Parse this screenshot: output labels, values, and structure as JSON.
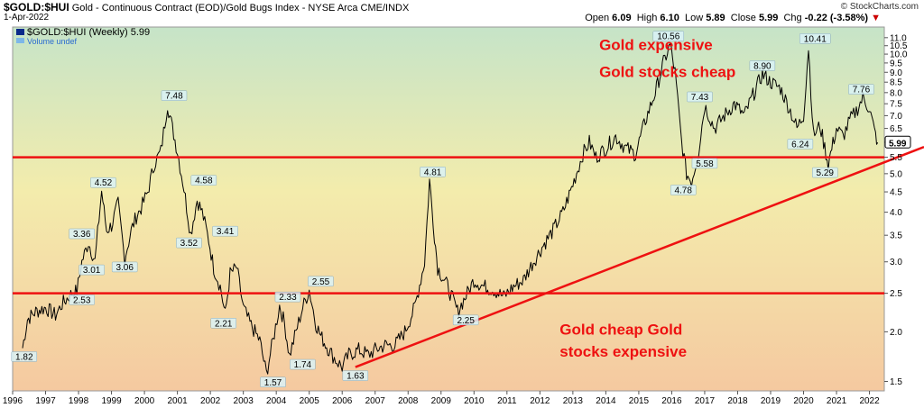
{
  "header": {
    "symbol": "$GOLD:$HUI",
    "description": "Gold - Continuous Contract (EOD)/Gold Bugs Index - NYSE Arca",
    "exchange": "CME/INDX",
    "date": "1-Apr-2022",
    "credit": "© StockCharts.com",
    "open_label": "Open",
    "open": "6.09",
    "high_label": "High",
    "high": "6.10",
    "low_label": "Low",
    "low": "5.89",
    "close_label": "Close",
    "close": "5.99",
    "chg_label": "Chg",
    "chg": "-0.22 (-3.58%)"
  },
  "legend": {
    "series_label": "$GOLD:$HUI (Weekly) 5.99",
    "volume_label": "Volume undef"
  },
  "colors": {
    "price": "#000000",
    "trendline": "#ee1111",
    "annotation": "#ee1111",
    "bg_top": "#c6e4c8",
    "bg_mid": "#f3ecac",
    "bg_bottom": "#f5c9a0",
    "label_fill": "#d9f2f7"
  },
  "chart_data": {
    "type": "line",
    "title": "$GOLD:$HUI Gold - Continuous Contract (EOD)/Gold Bugs Index - NYSE Arca",
    "yscale": "log",
    "ylim": [
      1.42,
      11.7
    ],
    "xlim": [
      1996.0,
      2022.45
    ],
    "y_ticks": [
      "11.0",
      "10.5",
      "10.0",
      "9.5",
      "9.0",
      "8.5",
      "8.0",
      "7.5",
      "7.0",
      "6.5",
      "6.0",
      "5.5",
      "5.0",
      "4.5",
      "4.0",
      "3.5",
      "3.0",
      "2.5",
      "2.0",
      "1.5"
    ],
    "x_ticks": [
      "1996",
      "1997",
      "1998",
      "1999",
      "2000",
      "2001",
      "2002",
      "2003",
      "2004",
      "2005",
      "2006",
      "2007",
      "2008",
      "2009",
      "2010",
      "2011",
      "2012",
      "2013",
      "2014",
      "2015",
      "2016",
      "2017",
      "2018",
      "2019",
      "2020",
      "2021",
      "2022"
    ],
    "series": [
      {
        "name": "$GOLD:$HUI (Weekly)",
        "x": [
          1996.3,
          1996.45,
          1996.7,
          1997.0,
          1997.3,
          1997.5,
          1997.8,
          1997.95,
          1998.1,
          1998.3,
          1998.5,
          1998.7,
          1998.85,
          1999.0,
          1999.2,
          1999.4,
          1999.6,
          1999.75,
          1999.9,
          2000.1,
          2000.3,
          2000.5,
          2000.7,
          2000.85,
          2001.0,
          2001.2,
          2001.4,
          2001.6,
          2001.75,
          2001.95,
          2002.1,
          2002.3,
          2002.45,
          2002.6,
          2002.8,
          2003.0,
          2003.2,
          2003.5,
          2003.7,
          2003.9,
          2004.1,
          2004.25,
          2004.4,
          2004.6,
          2004.8,
          2005.0,
          2005.2,
          2005.35,
          2005.6,
          2005.8,
          2006.0,
          2006.2,
          2006.5,
          2006.8,
          2007.0,
          2007.3,
          2007.6,
          2007.9,
          2008.2,
          2008.5,
          2008.65,
          2008.8,
          2008.9,
          2009.2,
          2009.5,
          2009.8,
          2010.0,
          2010.3,
          2010.6,
          2010.9,
          2011.2,
          2011.5,
          2011.8,
          2012.1,
          2012.4,
          2012.7,
          2013.0,
          2013.3,
          2013.5,
          2013.7,
          2014.0,
          2014.3,
          2014.6,
          2014.9,
          2015.2,
          2015.5,
          2015.75,
          2015.95,
          2016.1,
          2016.3,
          2016.45,
          2016.6,
          2016.8,
          2017.0,
          2017.3,
          2017.6,
          2017.9,
          2018.2,
          2018.5,
          2018.75,
          2019.0,
          2019.3,
          2019.6,
          2019.8,
          2020.0,
          2020.15,
          2020.3,
          2020.5,
          2020.75,
          2021.0,
          2021.2,
          2021.4,
          2021.6,
          2021.8,
          2022.0,
          2022.15,
          2022.25
        ],
        "values": [
          1.82,
          2.15,
          2.25,
          2.3,
          2.2,
          2.35,
          2.5,
          2.53,
          3.0,
          3.36,
          3.01,
          4.52,
          3.6,
          3.7,
          4.2,
          3.06,
          3.6,
          3.9,
          4.1,
          4.5,
          5.3,
          5.7,
          7.48,
          6.5,
          5.7,
          4.58,
          3.52,
          4.3,
          4.0,
          3.41,
          2.9,
          2.6,
          2.21,
          2.8,
          2.9,
          2.3,
          2.1,
          1.9,
          1.57,
          1.9,
          2.33,
          2.1,
          1.74,
          2.0,
          2.3,
          2.55,
          2.1,
          1.95,
          1.8,
          1.7,
          1.63,
          1.75,
          1.8,
          1.75,
          1.8,
          1.85,
          1.85,
          2.0,
          2.3,
          3.0,
          4.81,
          3.5,
          2.9,
          2.6,
          2.25,
          2.5,
          2.7,
          2.6,
          2.55,
          2.45,
          2.6,
          2.7,
          3.0,
          3.3,
          3.6,
          4.0,
          4.7,
          5.6,
          6.0,
          5.5,
          5.8,
          6.2,
          5.8,
          5.6,
          6.8,
          8.0,
          9.5,
          10.56,
          9.0,
          6.0,
          5.0,
          4.78,
          5.58,
          7.43,
          6.5,
          7.0,
          7.5,
          7.0,
          8.0,
          8.9,
          8.5,
          8.2,
          7.2,
          6.5,
          7.0,
          10.41,
          6.24,
          6.6,
          5.29,
          6.5,
          6.2,
          6.8,
          7.2,
          7.76,
          7.3,
          6.4,
          5.99
        ]
      }
    ],
    "point_labels": [
      {
        "x": 1996.35,
        "y": 1.82,
        "text": "1.82",
        "pos": "below"
      },
      {
        "x": 1998.1,
        "y": 3.36,
        "text": "3.36",
        "pos": "above"
      },
      {
        "x": 1998.1,
        "y": 2.53,
        "text": "2.53",
        "pos": "below"
      },
      {
        "x": 1998.4,
        "y": 3.01,
        "text": "3.01",
        "pos": "below"
      },
      {
        "x": 1998.75,
        "y": 4.52,
        "text": "4.52",
        "pos": "above"
      },
      {
        "x": 1999.4,
        "y": 3.06,
        "text": "3.06",
        "pos": "below"
      },
      {
        "x": 2000.9,
        "y": 7.48,
        "text": "7.48",
        "pos": "above"
      },
      {
        "x": 2001.8,
        "y": 4.58,
        "text": "4.58",
        "pos": "above"
      },
      {
        "x": 2001.35,
        "y": 3.52,
        "text": "3.52",
        "pos": "below"
      },
      {
        "x": 2002.45,
        "y": 3.41,
        "text": "3.41",
        "pos": "above"
      },
      {
        "x": 2002.4,
        "y": 2.21,
        "text": "2.21",
        "pos": "below"
      },
      {
        "x": 2003.9,
        "y": 1.57,
        "text": "1.57",
        "pos": "below"
      },
      {
        "x": 2004.35,
        "y": 2.33,
        "text": "2.33",
        "pos": "above"
      },
      {
        "x": 2004.8,
        "y": 1.74,
        "text": "1.74",
        "pos": "below"
      },
      {
        "x": 2005.35,
        "y": 2.55,
        "text": "2.55",
        "pos": "above"
      },
      {
        "x": 2006.4,
        "y": 1.63,
        "text": "1.63",
        "pos": "below"
      },
      {
        "x": 2008.75,
        "y": 4.81,
        "text": "4.81",
        "pos": "above"
      },
      {
        "x": 2009.75,
        "y": 2.25,
        "text": "2.25",
        "pos": "below"
      },
      {
        "x": 2015.9,
        "y": 10.56,
        "text": "10.56",
        "pos": "above"
      },
      {
        "x": 2016.35,
        "y": 4.78,
        "text": "4.78",
        "pos": "below"
      },
      {
        "x": 2017.0,
        "y": 5.58,
        "text": "5.58",
        "pos": "below"
      },
      {
        "x": 2016.85,
        "y": 7.43,
        "text": "7.43",
        "pos": "above"
      },
      {
        "x": 2018.75,
        "y": 8.9,
        "text": "8.90",
        "pos": "above"
      },
      {
        "x": 2020.35,
        "y": 10.41,
        "text": "10.41",
        "pos": "above"
      },
      {
        "x": 2019.9,
        "y": 6.24,
        "text": "6.24",
        "pos": "below"
      },
      {
        "x": 2020.65,
        "y": 5.29,
        "text": "5.29",
        "pos": "below"
      },
      {
        "x": 2021.75,
        "y": 7.76,
        "text": "7.76",
        "pos": "above"
      }
    ],
    "horizontal_lines": [
      5.5,
      2.5
    ],
    "trendline": {
      "x1": 2006.4,
      "y1": 1.63,
      "x2": 2022.45,
      "y2": 5.6
    },
    "annotations": [
      {
        "text": "Gold expensive",
        "x": 2013.8,
        "y": 10.25
      },
      {
        "text": "Gold stocks cheap",
        "x": 2013.8,
        "y": 8.75
      },
      {
        "text": "Gold cheap Gold",
        "x": 2012.6,
        "y": 1.97
      },
      {
        "text": "stocks expensive",
        "x": 2012.6,
        "y": 1.73
      }
    ],
    "last_value_tag": "5.99",
    "grid": false
  }
}
